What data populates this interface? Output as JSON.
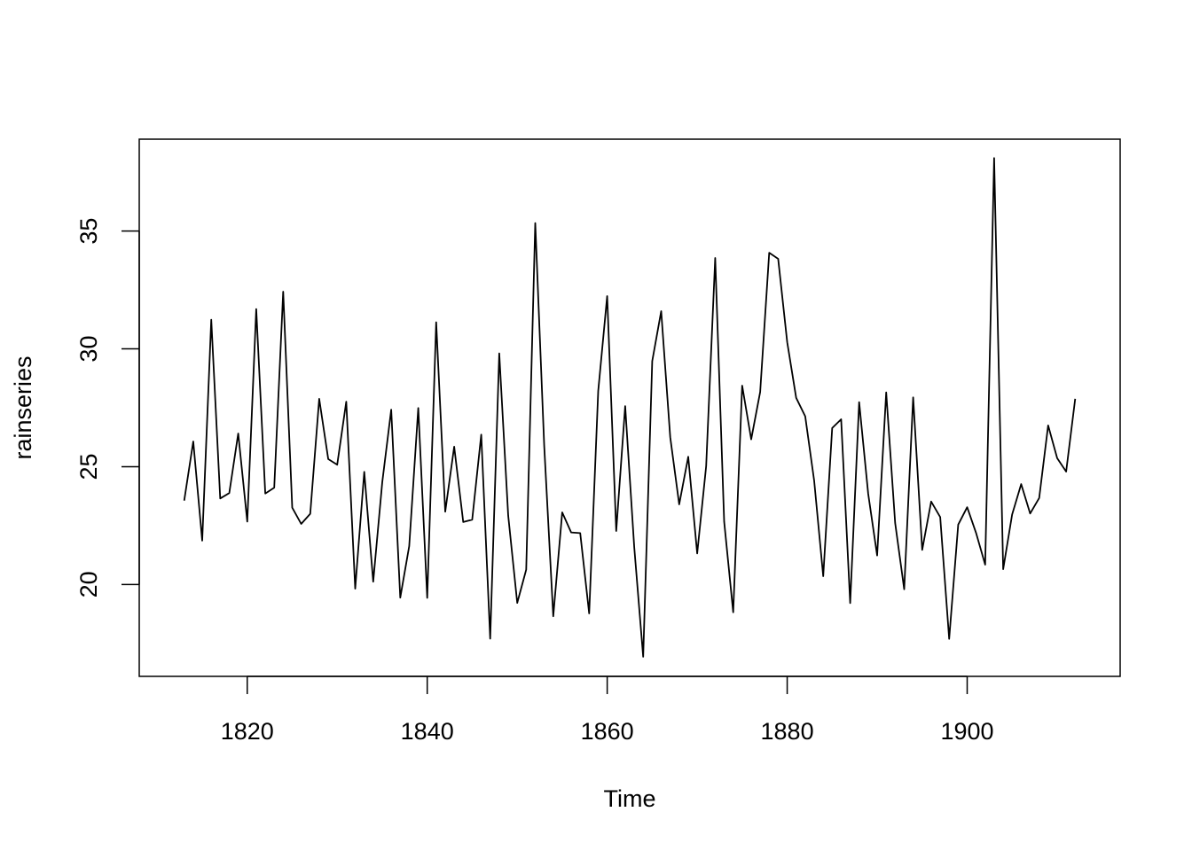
{
  "chart_data": {
    "type": "line",
    "title": "",
    "xlabel": "Time",
    "ylabel": "rainseries",
    "xlim": [
      1808,
      1917
    ],
    "ylim": [
      16.1,
      38.9
    ],
    "x_ticks": [
      1820,
      1840,
      1860,
      1880,
      1900
    ],
    "y_ticks": [
      20,
      25,
      30,
      35
    ],
    "grid": false,
    "legend": "none",
    "line_color": "#000000",
    "series": [
      {
        "x": [
          1813,
          1814,
          1815,
          1816,
          1817,
          1818,
          1819,
          1820,
          1821,
          1822,
          1823,
          1824,
          1825,
          1826,
          1827,
          1828,
          1829,
          1830,
          1831,
          1832,
          1833,
          1834,
          1835,
          1836,
          1837,
          1838,
          1839,
          1840,
          1841,
          1842,
          1843,
          1844,
          1845,
          1846,
          1847,
          1848,
          1849,
          1850,
          1851,
          1852,
          1853,
          1854,
          1855,
          1856,
          1857,
          1858,
          1859,
          1860,
          1861,
          1862,
          1863,
          1864,
          1865,
          1866,
          1867,
          1868,
          1869,
          1870,
          1871,
          1872,
          1873,
          1874,
          1875,
          1876,
          1877,
          1878,
          1879,
          1880,
          1881,
          1882,
          1883,
          1884,
          1885,
          1886,
          1887,
          1888,
          1889,
          1890,
          1891,
          1892,
          1893,
          1894,
          1895,
          1896,
          1897,
          1898,
          1899,
          1900,
          1901,
          1902,
          1903,
          1904,
          1905,
          1906,
          1907,
          1908,
          1909,
          1910,
          1911,
          1912
        ],
        "values": [
          23.56,
          26.07,
          21.86,
          31.24,
          23.65,
          23.88,
          26.41,
          22.67,
          31.69,
          23.86,
          24.11,
          32.43,
          23.26,
          22.57,
          23.0,
          27.88,
          25.32,
          25.08,
          27.76,
          19.82,
          24.78,
          20.12,
          24.34,
          27.42,
          19.44,
          21.63,
          27.49,
          19.43,
          31.13,
          23.09,
          25.85,
          22.65,
          22.75,
          26.36,
          17.7,
          29.81,
          22.93,
          19.22,
          20.63,
          35.34,
          25.89,
          18.65,
          23.06,
          22.21,
          22.18,
          18.77,
          28.21,
          32.24,
          22.27,
          27.57,
          21.59,
          16.93,
          29.48,
          31.6,
          26.25,
          23.4,
          25.42,
          21.32,
          25.02,
          33.86,
          22.67,
          18.82,
          28.44,
          26.16,
          28.17,
          34.08,
          33.82,
          30.28,
          27.92,
          27.14,
          24.4,
          20.35,
          26.64,
          27.01,
          19.21,
          27.74,
          23.85,
          21.23,
          28.15,
          22.61,
          19.8,
          27.94,
          21.47,
          23.52,
          22.86,
          17.69,
          22.54,
          23.28,
          22.17,
          20.84,
          38.1,
          20.65,
          22.97,
          24.26,
          23.01,
          23.67,
          26.75,
          25.36,
          24.79,
          27.88
        ]
      }
    ]
  }
}
